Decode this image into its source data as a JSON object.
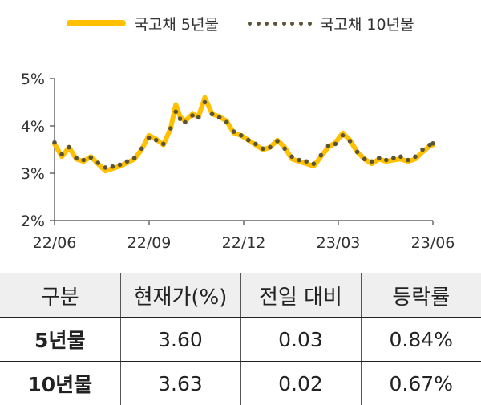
{
  "chart_data": {
    "type": "line",
    "x_tick_labels": [
      "22/06",
      "22/09",
      "22/12",
      "23/03",
      "23/06"
    ],
    "y_tick_labels": [
      "5%",
      "4%",
      "3%",
      "2%"
    ],
    "y_ticks": [
      5,
      4,
      3,
      2
    ],
    "ylim": [
      2,
      5
    ],
    "xlim": [
      "2022-06-01",
      "2023-06-01"
    ],
    "grid": false,
    "legend_position": "top",
    "series": [
      {
        "name": "국고채 5년물",
        "style": "solid-line",
        "color": "#FFC000",
        "points": [
          [
            "2022-06-01",
            3.62
          ],
          [
            "2022-06-08",
            3.35
          ],
          [
            "2022-06-15",
            3.55
          ],
          [
            "2022-06-22",
            3.3
          ],
          [
            "2022-06-29",
            3.25
          ],
          [
            "2022-07-06",
            3.35
          ],
          [
            "2022-07-13",
            3.2
          ],
          [
            "2022-07-20",
            3.05
          ],
          [
            "2022-07-27",
            3.1
          ],
          [
            "2022-08-03",
            3.15
          ],
          [
            "2022-08-10",
            3.22
          ],
          [
            "2022-08-17",
            3.3
          ],
          [
            "2022-08-24",
            3.5
          ],
          [
            "2022-08-31",
            3.8
          ],
          [
            "2022-09-07",
            3.72
          ],
          [
            "2022-09-14",
            3.6
          ],
          [
            "2022-09-21",
            3.95
          ],
          [
            "2022-09-26",
            4.45
          ],
          [
            "2022-09-30",
            4.2
          ],
          [
            "2022-10-05",
            4.1
          ],
          [
            "2022-10-12",
            4.25
          ],
          [
            "2022-10-18",
            4.2
          ],
          [
            "2022-10-24",
            4.6
          ],
          [
            "2022-10-31",
            4.25
          ],
          [
            "2022-11-07",
            4.2
          ],
          [
            "2022-11-14",
            4.1
          ],
          [
            "2022-11-21",
            3.85
          ],
          [
            "2022-11-28",
            3.8
          ],
          [
            "2022-12-05",
            3.7
          ],
          [
            "2022-12-12",
            3.6
          ],
          [
            "2022-12-19",
            3.5
          ],
          [
            "2022-12-26",
            3.55
          ],
          [
            "2023-01-02",
            3.7
          ],
          [
            "2023-01-09",
            3.55
          ],
          [
            "2023-01-16",
            3.3
          ],
          [
            "2023-01-23",
            3.25
          ],
          [
            "2023-01-30",
            3.2
          ],
          [
            "2023-02-06",
            3.15
          ],
          [
            "2023-02-13",
            3.35
          ],
          [
            "2023-02-20",
            3.55
          ],
          [
            "2023-02-27",
            3.65
          ],
          [
            "2023-03-06",
            3.85
          ],
          [
            "2023-03-13",
            3.7
          ],
          [
            "2023-03-20",
            3.45
          ],
          [
            "2023-03-27",
            3.3
          ],
          [
            "2023-04-03",
            3.2
          ],
          [
            "2023-04-10",
            3.3
          ],
          [
            "2023-04-17",
            3.25
          ],
          [
            "2023-04-24",
            3.28
          ],
          [
            "2023-05-01",
            3.3
          ],
          [
            "2023-05-08",
            3.25
          ],
          [
            "2023-05-15",
            3.3
          ],
          [
            "2023-05-22",
            3.45
          ],
          [
            "2023-05-29",
            3.58
          ],
          [
            "2023-06-01",
            3.6
          ]
        ]
      },
      {
        "name": "국고채 10년물",
        "style": "dotted",
        "color": "#5A5336",
        "points": [
          [
            "2022-06-01",
            3.65
          ],
          [
            "2022-06-08",
            3.4
          ],
          [
            "2022-06-15",
            3.55
          ],
          [
            "2022-06-22",
            3.32
          ],
          [
            "2022-06-29",
            3.28
          ],
          [
            "2022-07-06",
            3.33
          ],
          [
            "2022-07-13",
            3.22
          ],
          [
            "2022-07-20",
            3.12
          ],
          [
            "2022-07-27",
            3.14
          ],
          [
            "2022-08-03",
            3.18
          ],
          [
            "2022-08-10",
            3.25
          ],
          [
            "2022-08-17",
            3.32
          ],
          [
            "2022-08-24",
            3.52
          ],
          [
            "2022-08-31",
            3.75
          ],
          [
            "2022-09-07",
            3.7
          ],
          [
            "2022-09-14",
            3.62
          ],
          [
            "2022-09-21",
            3.95
          ],
          [
            "2022-09-26",
            4.3
          ],
          [
            "2022-09-30",
            4.15
          ],
          [
            "2022-10-05",
            4.08
          ],
          [
            "2022-10-12",
            4.22
          ],
          [
            "2022-10-18",
            4.18
          ],
          [
            "2022-10-24",
            4.5
          ],
          [
            "2022-10-31",
            4.25
          ],
          [
            "2022-11-07",
            4.18
          ],
          [
            "2022-11-14",
            4.08
          ],
          [
            "2022-11-21",
            3.88
          ],
          [
            "2022-11-28",
            3.8
          ],
          [
            "2022-12-05",
            3.7
          ],
          [
            "2022-12-12",
            3.62
          ],
          [
            "2022-12-19",
            3.52
          ],
          [
            "2022-12-26",
            3.55
          ],
          [
            "2023-01-02",
            3.68
          ],
          [
            "2023-01-09",
            3.52
          ],
          [
            "2023-01-16",
            3.35
          ],
          [
            "2023-01-23",
            3.28
          ],
          [
            "2023-01-30",
            3.25
          ],
          [
            "2023-02-06",
            3.2
          ],
          [
            "2023-02-13",
            3.38
          ],
          [
            "2023-02-20",
            3.58
          ],
          [
            "2023-02-27",
            3.62
          ],
          [
            "2023-03-06",
            3.8
          ],
          [
            "2023-03-13",
            3.68
          ],
          [
            "2023-03-20",
            3.45
          ],
          [
            "2023-03-27",
            3.3
          ],
          [
            "2023-04-03",
            3.25
          ],
          [
            "2023-04-10",
            3.32
          ],
          [
            "2023-04-17",
            3.28
          ],
          [
            "2023-04-24",
            3.32
          ],
          [
            "2023-05-01",
            3.35
          ],
          [
            "2023-05-08",
            3.28
          ],
          [
            "2023-05-15",
            3.35
          ],
          [
            "2023-05-22",
            3.5
          ],
          [
            "2023-05-29",
            3.6
          ],
          [
            "2023-06-01",
            3.63
          ]
        ]
      }
    ]
  },
  "table": {
    "headers": [
      "구분",
      "현재가(%)",
      "전일 대비",
      "등락률"
    ],
    "rows": [
      [
        "5년물",
        "3.60",
        "0.03",
        "0.84%"
      ],
      [
        "10년물",
        "3.63",
        "0.02",
        "0.67%"
      ]
    ]
  }
}
